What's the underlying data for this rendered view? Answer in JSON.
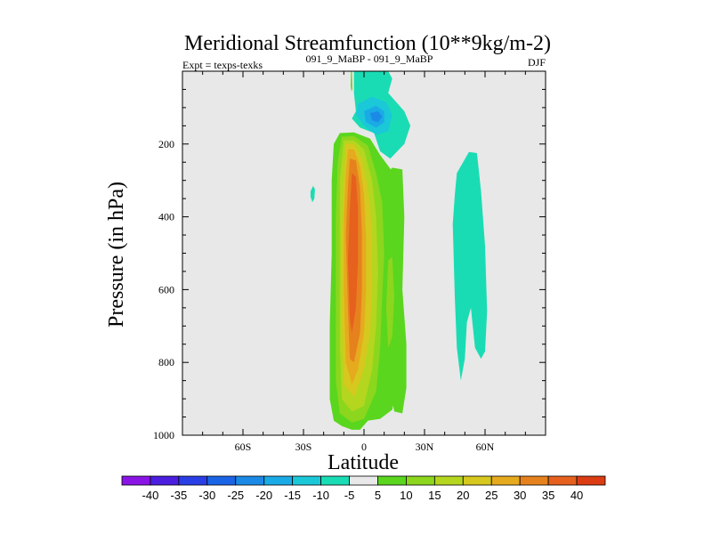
{
  "chart_data": {
    "type": "heatmap",
    "title": "Meridional Streamfunction (10**9kg/m-2)",
    "subtitle_left": "Expt = texps-texks",
    "subtitle_center": "091_9_MaBP - 091_9_MaBP",
    "subtitle_right": "DJF",
    "xlabel": "Latitude",
    "ylabel": "Pressure (in hPa)",
    "xlim": [
      -90,
      90
    ],
    "ylim": [
      0,
      1000
    ],
    "y_inverted": true,
    "x_ticks": [
      {
        "value": -60,
        "label": "60S"
      },
      {
        "value": -30,
        "label": "30S"
      },
      {
        "value": 0,
        "label": "0"
      },
      {
        "value": 30,
        "label": "30N"
      },
      {
        "value": 60,
        "label": "60N"
      }
    ],
    "y_ticks": [
      {
        "value": 200,
        "label": "200"
      },
      {
        "value": 400,
        "label": "400"
      },
      {
        "value": 600,
        "label": "600"
      },
      {
        "value": 800,
        "label": "800"
      },
      {
        "value": 1000,
        "label": "1000"
      }
    ],
    "colorbar": {
      "labels": [
        "-40",
        "-35",
        "-30",
        "-25",
        "-20",
        "-15",
        "-10",
        "-5",
        "5",
        "10",
        "15",
        "20",
        "25",
        "30",
        "35",
        "40"
      ],
      "colors": [
        "#8a14e6",
        "#4b1ee0",
        "#2a3ee6",
        "#1a64e6",
        "#1a8ae6",
        "#1aaae6",
        "#1ac8d8",
        "#1adcb4",
        "#e8e8e8",
        "#5ad61e",
        "#8cd61e",
        "#b4d61e",
        "#d6c81e",
        "#e6aa1e",
        "#e6821e",
        "#e6601e",
        "#dc3c14"
      ]
    },
    "background_color": "#e8e8e8",
    "regions": [
      {
        "name": "positive-cell-10",
        "level": 10,
        "color": "#5ad61e",
        "points": [
          [
            -12,
            170
          ],
          [
            -5,
            168
          ],
          [
            3,
            185
          ],
          [
            8,
            230
          ],
          [
            14,
            275
          ],
          [
            18,
            310
          ],
          [
            18,
            430
          ],
          [
            16,
            580
          ],
          [
            17,
            700
          ],
          [
            16,
            800
          ],
          [
            16,
            880
          ],
          [
            14,
            930
          ],
          [
            8,
            955
          ],
          [
            2,
            960
          ],
          [
            -2,
            985
          ],
          [
            -6,
            985
          ],
          [
            -11,
            975
          ],
          [
            -15,
            960
          ],
          [
            -17,
            900
          ],
          [
            -17,
            700
          ],
          [
            -16,
            500
          ],
          [
            -16,
            300
          ],
          [
            -15,
            200
          ]
        ]
      },
      {
        "name": "positive-cell-15",
        "level": 15,
        "color": "#8cd61e",
        "points": [
          [
            -11,
            180
          ],
          [
            -5,
            178
          ],
          [
            2,
            205
          ],
          [
            6,
            280
          ],
          [
            9,
            360
          ],
          [
            10,
            500
          ],
          [
            9,
            620
          ],
          [
            8,
            760
          ],
          [
            6,
            880
          ],
          [
            0,
            955
          ],
          [
            -6,
            965
          ],
          [
            -12,
            940
          ],
          [
            -14,
            850
          ],
          [
            -14,
            600
          ],
          [
            -14,
            400
          ],
          [
            -13,
            250
          ]
        ]
      },
      {
        "name": "positive-cell-20",
        "level": 20,
        "color": "#b4d61e",
        "points": [
          [
            -10,
            190
          ],
          [
            -5,
            190
          ],
          [
            0,
            215
          ],
          [
            4,
            300
          ],
          [
            6,
            400
          ],
          [
            7,
            550
          ],
          [
            6,
            700
          ],
          [
            4,
            820
          ],
          [
            0,
            920
          ],
          [
            -6,
            935
          ],
          [
            -11,
            900
          ],
          [
            -12,
            750
          ],
          [
            -12,
            500
          ],
          [
            -12,
            300
          ]
        ]
      },
      {
        "name": "positive-cell-25",
        "level": 25,
        "color": "#d6c81e",
        "points": [
          [
            -9,
            200
          ],
          [
            -5,
            200
          ],
          [
            -1,
            240
          ],
          [
            2,
            320
          ],
          [
            4,
            450
          ],
          [
            4,
            600
          ],
          [
            3,
            720
          ],
          [
            0,
            820
          ],
          [
            -5,
            895
          ],
          [
            -10,
            860
          ],
          [
            -11,
            700
          ],
          [
            -11,
            450
          ],
          [
            -10,
            300
          ]
        ]
      },
      {
        "name": "positive-cell-30",
        "level": 30,
        "color": "#e6aa1e",
        "points": [
          [
            -8,
            215
          ],
          [
            -5,
            215
          ],
          [
            -2,
            260
          ],
          [
            0,
            340
          ],
          [
            1,
            460
          ],
          [
            1,
            600
          ],
          [
            0,
            720
          ],
          [
            -3,
            820
          ],
          [
            -6,
            860
          ],
          [
            -9,
            800
          ],
          [
            -10,
            600
          ],
          [
            -10,
            400
          ],
          [
            -9,
            280
          ]
        ]
      },
      {
        "name": "positive-cell-35",
        "level": 35,
        "color": "#e6821e",
        "points": [
          [
            -7,
            240
          ],
          [
            -4,
            245
          ],
          [
            -2,
            320
          ],
          [
            -1,
            450
          ],
          [
            -1,
            600
          ],
          [
            -2,
            720
          ],
          [
            -5,
            800
          ],
          [
            -7,
            790
          ],
          [
            -8,
            650
          ],
          [
            -9,
            450
          ],
          [
            -8,
            320
          ]
        ]
      },
      {
        "name": "positive-cell-40",
        "level": 40,
        "color": "#e6601e",
        "points": [
          [
            -6,
            280
          ],
          [
            -4,
            290
          ],
          [
            -3,
            380
          ],
          [
            -3,
            520
          ],
          [
            -4,
            650
          ],
          [
            -6,
            720
          ],
          [
            -7,
            680
          ],
          [
            -8,
            520
          ],
          [
            -7,
            380
          ]
        ]
      },
      {
        "name": "nh-cell-10",
        "level": 10,
        "color": "#5ad61e",
        "points": [
          [
            10,
            290
          ],
          [
            14,
            265
          ],
          [
            19,
            270
          ],
          [
            20,
            400
          ],
          [
            19,
            600
          ],
          [
            21,
            750
          ],
          [
            21,
            870
          ],
          [
            19,
            940
          ],
          [
            15,
            935
          ],
          [
            12,
            850
          ],
          [
            11,
            650
          ],
          [
            10,
            450
          ]
        ]
      },
      {
        "name": "nh-cell-15",
        "level": 15,
        "color": "#8cd61e",
        "points": [
          [
            12,
            520
          ],
          [
            14,
            510
          ],
          [
            15,
            620
          ],
          [
            14,
            730
          ],
          [
            12,
            760
          ],
          [
            11,
            650
          ]
        ]
      },
      {
        "name": "upper-cell-5",
        "level": -5,
        "color": "#1adcb4",
        "points": [
          [
            -5,
            0
          ],
          [
            12,
            0
          ],
          [
            14,
            20
          ],
          [
            12,
            60
          ],
          [
            20,
            110
          ],
          [
            23,
            150
          ],
          [
            20,
            200
          ],
          [
            13,
            240
          ],
          [
            8,
            220
          ],
          [
            5,
            170
          ],
          [
            -2,
            155
          ],
          [
            -6,
            130
          ],
          [
            -4,
            110
          ],
          [
            -5,
            60
          ]
        ]
      },
      {
        "name": "upper-cell-10",
        "level": -10,
        "color": "#1ac8d8",
        "points": [
          [
            -3,
            90
          ],
          [
            4,
            70
          ],
          [
            11,
            85
          ],
          [
            14,
            120
          ],
          [
            12,
            165
          ],
          [
            6,
            175
          ],
          [
            0,
            150
          ],
          [
            -4,
            120
          ]
        ]
      },
      {
        "name": "upper-cell-15",
        "level": -15,
        "color": "#1aaae6",
        "points": [
          [
            0,
            110
          ],
          [
            6,
            95
          ],
          [
            10,
            110
          ],
          [
            10,
            140
          ],
          [
            6,
            155
          ],
          [
            1,
            140
          ]
        ]
      },
      {
        "name": "upper-cell-20",
        "level": -20,
        "color": "#1a8ae6",
        "points": [
          [
            3,
            115
          ],
          [
            7,
            110
          ],
          [
            9,
            125
          ],
          [
            7,
            140
          ],
          [
            4,
            135
          ]
        ]
      },
      {
        "name": "small-green-top",
        "level": 10,
        "color": "#5ad61e",
        "points": [
          [
            -6.5,
            0
          ],
          [
            -6,
            0
          ],
          [
            -5.8,
            50
          ],
          [
            -6.2,
            55
          ],
          [
            -6.6,
            40
          ]
        ]
      },
      {
        "name": "nh-neg-5",
        "level": -5,
        "color": "#1adcb4",
        "points": [
          [
            46,
            280
          ],
          [
            52,
            222
          ],
          [
            56,
            225
          ],
          [
            58,
            330
          ],
          [
            60,
            480
          ],
          [
            61,
            660
          ],
          [
            60,
            770
          ],
          [
            58,
            790
          ],
          [
            55,
            760
          ],
          [
            53,
            650
          ],
          [
            51,
            690
          ],
          [
            50,
            790
          ],
          [
            48,
            850
          ],
          [
            46,
            760
          ],
          [
            45,
            620
          ],
          [
            44,
            420
          ],
          [
            45,
            340
          ]
        ]
      },
      {
        "name": "sh-small-neg-5",
        "level": -5,
        "color": "#1adcb4",
        "points": [
          [
            -26.5,
            330
          ],
          [
            -25.2,
            315
          ],
          [
            -24.3,
            325
          ],
          [
            -24.6,
            350
          ],
          [
            -25.6,
            360
          ],
          [
            -26.5,
            345
          ]
        ]
      }
    ]
  }
}
